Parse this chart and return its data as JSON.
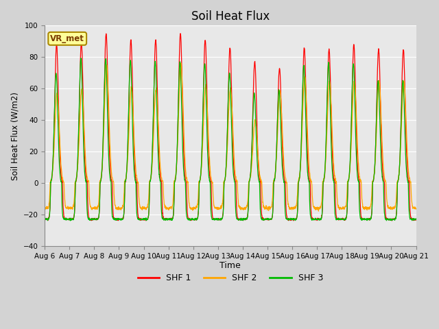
{
  "title": "Soil Heat Flux",
  "ylabel": "Soil Heat Flux (W/m2)",
  "xlabel": "Time",
  "ylim": [
    -40,
    100
  ],
  "yticks": [
    -40,
    -20,
    0,
    20,
    40,
    60,
    80,
    100
  ],
  "bg_color": "#d3d3d3",
  "plot_bg_color": "#e8e8e8",
  "line_colors": [
    "#ff0000",
    "#ffa500",
    "#00bb00"
  ],
  "legend_labels": [
    "SHF 1",
    "SHF 2",
    "SHF 3"
  ],
  "days": 15,
  "start_day": 6,
  "points_per_day": 144,
  "shf1_day_peaks": [
    88,
    89,
    95,
    91,
    91,
    95,
    91,
    86,
    77,
    73,
    86,
    85,
    88,
    85,
    85
  ],
  "shf2_day_peaks": [
    57,
    60,
    75,
    61,
    60,
    76,
    62,
    60,
    40,
    58,
    68,
    65,
    65,
    65,
    65
  ],
  "shf3_day_peaks": [
    70,
    79,
    79,
    78,
    77,
    77,
    76,
    70,
    57,
    59,
    75,
    76,
    76,
    65,
    65
  ],
  "shf1_night_base": -23,
  "shf2_night_base": -16,
  "shf3_night_base": -23
}
